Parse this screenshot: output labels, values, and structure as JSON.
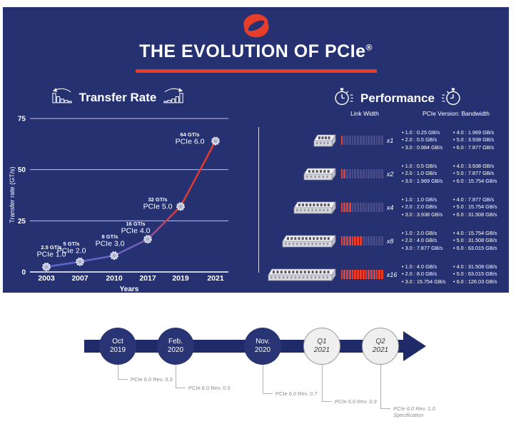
{
  "colors": {
    "panel_bg": "#263172",
    "accent_red": "#e63e2a",
    "timeline_navy": "#1f2b69",
    "line_blue": "#5767c4",
    "line_red": "#e8382a",
    "unlit_segment": "#474b87"
  },
  "title": {
    "text": "THE EVOLUTION OF PCIe",
    "registered": "®"
  },
  "transfer_rate_section": {
    "title": "Transfer Rate"
  },
  "chart_data": {
    "type": "line",
    "x": [
      "2003",
      "2007",
      "2010",
      "2017",
      "2019",
      "2021"
    ],
    "values": [
      2.5,
      5,
      8,
      16,
      32,
      64
    ],
    "point_labels": [
      {
        "rate": "2.5 GT/s",
        "gen": "PCIe 1.0"
      },
      {
        "rate": "5 GT/s",
        "gen": "PCIe 2.0"
      },
      {
        "rate": "8 GT/s",
        "gen": "PCIe 3.0"
      },
      {
        "rate": "16 GT/s",
        "gen": "PCIe 4.0"
      },
      {
        "rate": "32 GT/s",
        "gen": "PCIe 5.0"
      },
      {
        "rate": "64 GT/s",
        "gen": "PCIe 6.0"
      }
    ],
    "xlabel": "Years",
    "ylabel": "Transfer rate (GT/s)",
    "yticks": [
      0,
      25,
      50,
      75
    ],
    "ylim": [
      0,
      75
    ],
    "grid": true,
    "legend": "none"
  },
  "performance": {
    "title": "Performance",
    "col_link_width": "Link Width",
    "col_bandwidth": "PCIe Version: Bandwidth",
    "bar_segments_total": 16,
    "rows": [
      {
        "link": "x1",
        "lit_segments": 1,
        "left": [
          "1.0 : 0.25 GB/s",
          "2.0 : 0.5 GB/s",
          "3.0 : 0.984 GB/s"
        ],
        "right": [
          "4.0 : 1.969 GB/s",
          "5.0 : 3.938 GB/s",
          "6.0 : 7.877 GB/s"
        ]
      },
      {
        "link": "x2",
        "lit_segments": 2,
        "left": [
          "1.0 : 0.5 GB/s",
          "2.0 : 1.0 GB/s",
          "3.0 : 1.969 GB/s"
        ],
        "right": [
          "4.0 : 3.938 GB/s",
          "5.0 : 7.877 GB/s",
          "6.0 : 15.754 GB/s"
        ]
      },
      {
        "link": "x4",
        "lit_segments": 4,
        "left": [
          "1.0 : 1.0 GB/s",
          "2.0 : 2.0 GB/s",
          "3.0 : 3.938 GB/s"
        ],
        "right": [
          "4.0 : 7.877 GB/s",
          "5.0 : 15.754 GB/s",
          "6.0 : 31.508 GB/s"
        ]
      },
      {
        "link": "x8",
        "lit_segments": 8,
        "left": [
          "1.0 : 2.0 GB/s",
          "2.0 : 4.0 GB/s",
          "3.0 : 7.877 GB/s"
        ],
        "right": [
          "4.0 : 15.754 GB/s",
          "5.0 : 31.508 GB/s",
          "6.0 : 63.015 GB/s"
        ]
      },
      {
        "link": "x16",
        "lit_segments": 16,
        "left": [
          "1.0 : 4.0 GB/s",
          "2.0 : 8.0 GB/s",
          "3.0 : 15.754 GB/s"
        ],
        "right": [
          "4.0 : 31.508 GB/s",
          "5.0 : 63.015 GB/s",
          "6.0 : 126.03 GB/s"
        ]
      }
    ]
  },
  "timeline": {
    "milestones": [
      {
        "period": "Oct",
        "year": "2019",
        "label": "PCIe 6.0 Rev. 0.3"
      },
      {
        "period": "Feb.",
        "year": "2020",
        "label": "PCIe 6.0 Rev. 0.5"
      },
      {
        "period": "Nov.",
        "year": "2020",
        "label": "PCIe 6.0 Rev. 0.7"
      },
      {
        "period": "Q1",
        "year": "2021",
        "label": "PCIe 6.0 Rev. 0.9"
      },
      {
        "period": "Q2",
        "year": "2021",
        "label": "PCIe 6.0 Rev. 1.0",
        "label2": "Specification"
      }
    ]
  }
}
